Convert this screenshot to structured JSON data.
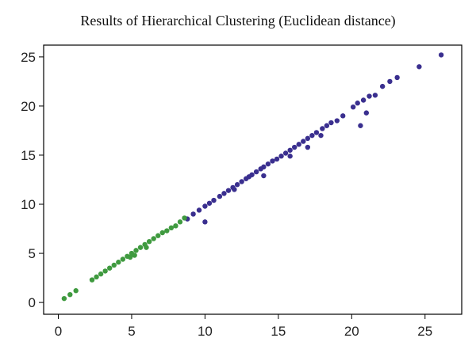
{
  "chart_data": {
    "type": "scatter",
    "title": "Results of Hierarchical Clustering (Euclidean distance)",
    "xlabel": "",
    "ylabel": "",
    "xlim": [
      -1,
      27.5
    ],
    "ylim": [
      -1.2,
      26.2
    ],
    "x_ticks": [
      0,
      5,
      10,
      15,
      20,
      25
    ],
    "y_ticks": [
      0,
      5,
      10,
      15,
      20,
      25
    ],
    "grid": false,
    "colors": {
      "cluster_1": "#3a2f8f",
      "cluster_2": "#3f9a3f"
    },
    "series": [
      {
        "color": "#3a2f8f",
        "x": [
          8.8,
          9.2,
          9.6,
          10.0,
          10.3,
          10.6,
          11.0,
          11.3,
          11.6,
          11.9,
          12.2,
          12.5,
          12.8,
          13.0,
          13.2,
          13.5,
          13.8,
          14.0,
          14.3,
          14.6,
          14.9,
          15.2,
          15.5,
          15.8,
          16.1,
          16.4,
          16.7,
          17.0,
          17.3,
          17.6,
          18.0,
          18.3,
          18.6,
          19.0,
          19.4,
          20.1,
          20.4,
          20.8,
          21.2,
          21.6,
          22.1,
          22.6,
          23.1,
          24.6,
          26.1,
          10.0,
          12.0,
          14.0,
          15.8,
          17.0,
          17.9,
          20.6,
          21.0
        ],
        "y": [
          8.5,
          9.0,
          9.4,
          9.8,
          10.1,
          10.4,
          10.8,
          11.1,
          11.4,
          11.7,
          12.0,
          12.3,
          12.6,
          12.8,
          13.0,
          13.3,
          13.6,
          13.8,
          14.1,
          14.4,
          14.6,
          14.9,
          15.2,
          15.5,
          15.8,
          16.1,
          16.4,
          16.7,
          17.0,
          17.3,
          17.7,
          18.0,
          18.3,
          18.5,
          19.0,
          19.9,
          20.3,
          20.6,
          21.0,
          21.1,
          22.0,
          22.5,
          22.9,
          24.0,
          25.2,
          8.2,
          11.5,
          12.9,
          14.9,
          15.8,
          17.0,
          18.0,
          19.3
        ]
      },
      {
        "color": "#3f9a3f",
        "x": [
          0.4,
          0.8,
          1.2,
          2.3,
          2.6,
          2.9,
          3.2,
          3.5,
          3.8,
          4.1,
          4.4,
          4.7,
          5.0,
          5.3,
          5.6,
          5.9,
          6.2,
          6.5,
          6.8,
          7.1,
          7.4,
          7.7,
          8.0,
          8.3,
          8.6,
          4.9,
          5.2,
          6.0
        ],
        "y": [
          0.4,
          0.8,
          1.2,
          2.3,
          2.6,
          2.9,
          3.2,
          3.5,
          3.8,
          4.1,
          4.4,
          4.7,
          5.0,
          5.3,
          5.6,
          5.9,
          6.2,
          6.5,
          6.8,
          7.1,
          7.3,
          7.6,
          7.8,
          8.2,
          8.6,
          4.6,
          4.8,
          5.6
        ]
      }
    ]
  }
}
